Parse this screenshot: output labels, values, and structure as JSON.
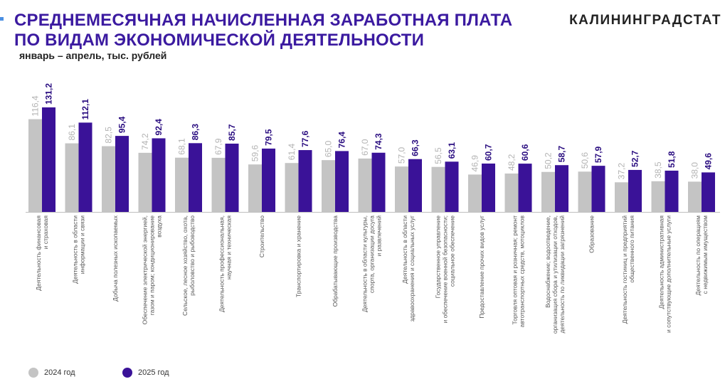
{
  "header": {
    "title_line1": "СРЕДНЕМЕСЯЧНАЯ НАЧИСЛЕННАЯ ЗАРАБОТНАЯ ПЛАТА",
    "title_line2": "ПО ВИДАМ ЭКОНОМИЧЕСКОЙ ДЕЯТЕЛЬНОСТИ",
    "subtitle": "январь – апрель, тыс. рублей",
    "brand": "КАЛИНИНГРАДСТАТ"
  },
  "colors": {
    "title": "#3b1aa0",
    "series_2024": "#c4c4c4",
    "series_2025": "#3a1298",
    "label_2024": "#b3b3b3",
    "label_2025": "#2a0d80",
    "accent": "#4a8fe2"
  },
  "chart_data": {
    "type": "bar",
    "categories": [
      [
        "Деятельность финансовая",
        "и страховая"
      ],
      [
        "Деятельность в области",
        "информации и связи"
      ],
      [
        "Добыча полезных ископаемых"
      ],
      [
        "Обеспечение электрической энергией,",
        "газом и паром; кондиционирование",
        "воздуха"
      ],
      [
        "Сельское, лесное хозяйство, охота,",
        "рыболовство и рыбоводство"
      ],
      [
        "Деятельность профессиональная,",
        "научная и техническая"
      ],
      [
        "Строительство"
      ],
      [
        "Транспортировка и хранение"
      ],
      [
        "Обрабатывающие производства"
      ],
      [
        "Деятельность в области культуры,",
        "спорта, организации досуга",
        "и развлечений"
      ],
      [
        "Деятельность в области",
        "здравоохранения и социальных услуг"
      ],
      [
        "Государственное управление",
        "и обеспечение военной безопасности;",
        "социальное обеспечение"
      ],
      [
        "Предоставление прочих видов услуг"
      ],
      [
        "Торговля оптовая и розничная; ремонт",
        "автотранспортных средств, мотоциклов"
      ],
      [
        "Водоснабжение; водоотведение,",
        "организация сбора и утилизации отходов,",
        "деятельность по ликвидации загрязнений"
      ],
      [
        "Образование"
      ],
      [
        "Деятельность гостиниц и предприятий",
        "общественного питания"
      ],
      [
        "Деятельность административная",
        "и сопутствующие дополнительные услуги"
      ],
      [
        "Деятельность по операциям",
        "с недвижимым имуществом"
      ]
    ],
    "series": [
      {
        "name": "2024 год",
        "values": [
          116.4,
          86.1,
          82.5,
          74.2,
          68.1,
          67.9,
          59.6,
          61.4,
          65.0,
          67.0,
          57.0,
          56.5,
          46.9,
          48.2,
          50.2,
          50.6,
          37.2,
          38.5,
          38.0
        ],
        "labels": [
          "116,4",
          "86,1",
          "82,5",
          "74,2",
          "68,1",
          "67,9",
          "59,6",
          "61,4",
          "65,0",
          "67,0",
          "57,0",
          "56,5",
          "46,9",
          "48,2",
          "50,2",
          "50,6",
          "37,2",
          "38,5",
          "38,0"
        ]
      },
      {
        "name": "2025 год",
        "values": [
          131.2,
          112.1,
          95.4,
          92.4,
          86.3,
          85.7,
          79.5,
          77.6,
          76.4,
          74.3,
          66.3,
          63.1,
          60.7,
          60.6,
          58.7,
          57.9,
          52.7,
          51.8,
          49.6
        ],
        "labels": [
          "131,2",
          "112,1",
          "95,4",
          "92,4",
          "86,3",
          "85,7",
          "79,5",
          "77,6",
          "76,4",
          "74,3",
          "66,3",
          "63,1",
          "60,7",
          "60,6",
          "58,7",
          "57,9",
          "52,7",
          "51,8",
          "49,6"
        ]
      }
    ],
    "ylim": [
      0,
      131.2
    ],
    "grid": false,
    "legend_position": "bottom-left"
  }
}
